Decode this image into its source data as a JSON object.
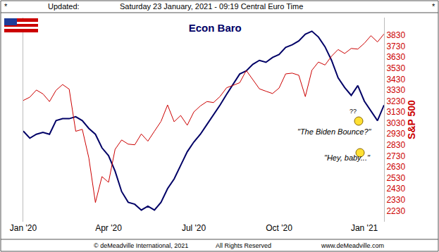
{
  "chart_data": {
    "type": "line",
    "title": "Econ Baro",
    "header": [
      "*",
      "Updated:",
      "Saturday 23 January, 2021 - 09:19 Central Euro Time",
      "*"
    ],
    "footer": [
      "© deMeadville International, 2021",
      "All Rights Reserved",
      "www.deMeadville.com"
    ],
    "annotations": [
      "??",
      "\"The Biden Bounce?\"",
      "\"Hey, baby...\""
    ],
    "y2_title": "S&P 500",
    "categories": [
      "Jan '20",
      null,
      null,
      null,
      null,
      null,
      null,
      null,
      null,
      null,
      null,
      null,
      null,
      "Apr '20",
      null,
      null,
      null,
      null,
      null,
      null,
      null,
      null,
      null,
      null,
      null,
      null,
      "Jul '20",
      null,
      null,
      null,
      null,
      null,
      null,
      null,
      null,
      null,
      null,
      null,
      null,
      "Oct '20",
      null,
      null,
      null,
      null,
      null,
      null,
      null,
      null,
      null,
      null,
      null,
      null,
      "Jan '21",
      null,
      null,
      null
    ],
    "series": [
      {
        "name": "Econ Baro",
        "color": "#000066",
        "axis": "y",
        "values": [
          46.6,
          43,
          45,
          46,
          45,
          52,
          53,
          53,
          54,
          52,
          48,
          45,
          38,
          34,
          26,
          15.5,
          10,
          9,
          6,
          8,
          6,
          10,
          17,
          22,
          29,
          36,
          41,
          45,
          50,
          55,
          60,
          65.5,
          71,
          76,
          77.6,
          81,
          83,
          82,
          84.5,
          86,
          89.7,
          91,
          93,
          96.5,
          98,
          95,
          90,
          83,
          74,
          69,
          65,
          70,
          62,
          57,
          52,
          60
        ]
      },
      {
        "name": "S&P 500",
        "color": "#cc0000",
        "axis": "y2",
        "values": [
          3235,
          3265,
          3330,
          3295,
          3225,
          3328,
          3380,
          3338,
          2954,
          2972,
          2711,
          2305,
          2541,
          2489,
          2790,
          2875,
          2837,
          2831,
          2930,
          2864,
          2955,
          3044,
          3194,
          3041,
          3098,
          3009,
          3130,
          3185,
          3225,
          3216,
          3271,
          3351,
          3373,
          3397,
          3508,
          3427,
          3341,
          3319,
          3298,
          3348,
          3477,
          3484,
          3465,
          3270,
          3510,
          3585,
          3558,
          3638,
          3699,
          3663,
          3709,
          3703,
          3756,
          3825,
          3768,
          3841
        ]
      }
    ],
    "ylim": [
      0,
      105
    ],
    "yticks": [],
    "y2lim": [
      2130,
      3990
    ],
    "y2ticks": [
      2230,
      2330,
      2430,
      2530,
      2630,
      2730,
      2830,
      2930,
      3030,
      3130,
      3230,
      3330,
      3430,
      3530,
      3630,
      3730,
      3830
    ],
    "grid": false
  }
}
